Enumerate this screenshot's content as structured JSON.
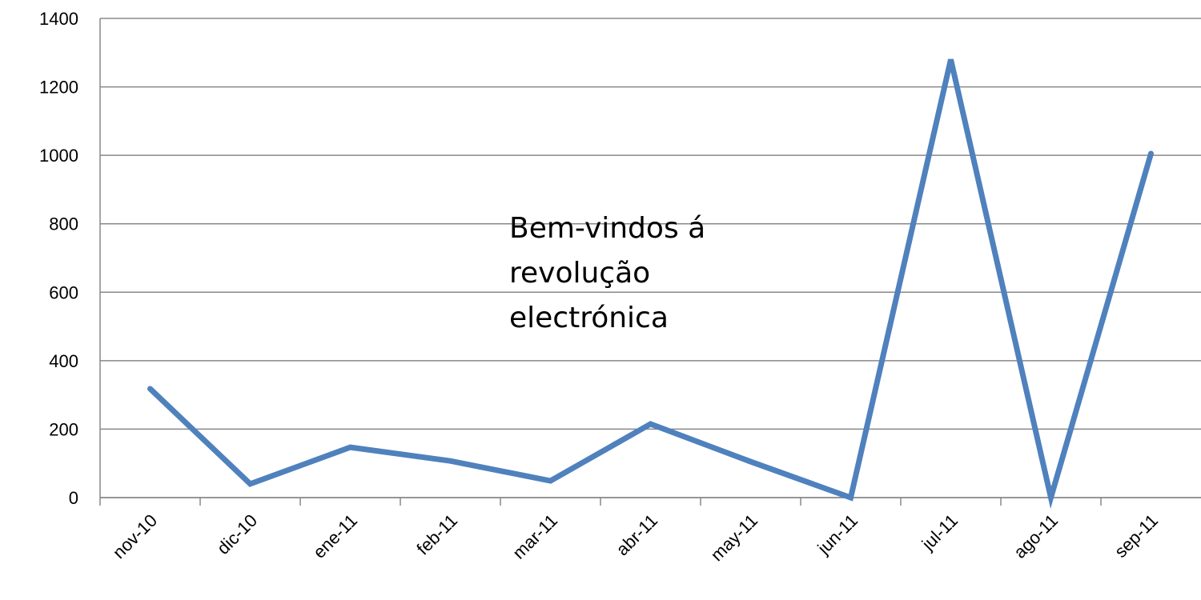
{
  "chart_data": {
    "type": "line",
    "categories": [
      "nov-10",
      "dic-10",
      "ene-11",
      "feb-11",
      "mar-11",
      "abr-11",
      "may-11",
      "jun-11",
      "jul-11",
      "ago-11",
      "sep-11"
    ],
    "series": [
      {
        "color": "#4f81bd",
        "values": [
          318,
          40,
          147,
          107,
          49,
          215,
          105,
          0,
          1280,
          0,
          1005
        ]
      }
    ],
    "ylim": [
      0,
      1400
    ],
    "yticks": [
      0,
      200,
      400,
      600,
      800,
      1000,
      1200,
      1400
    ],
    "grid": true,
    "annotation": [
      "Bem-vindos á",
      "revolução",
      "electrónica"
    ]
  }
}
